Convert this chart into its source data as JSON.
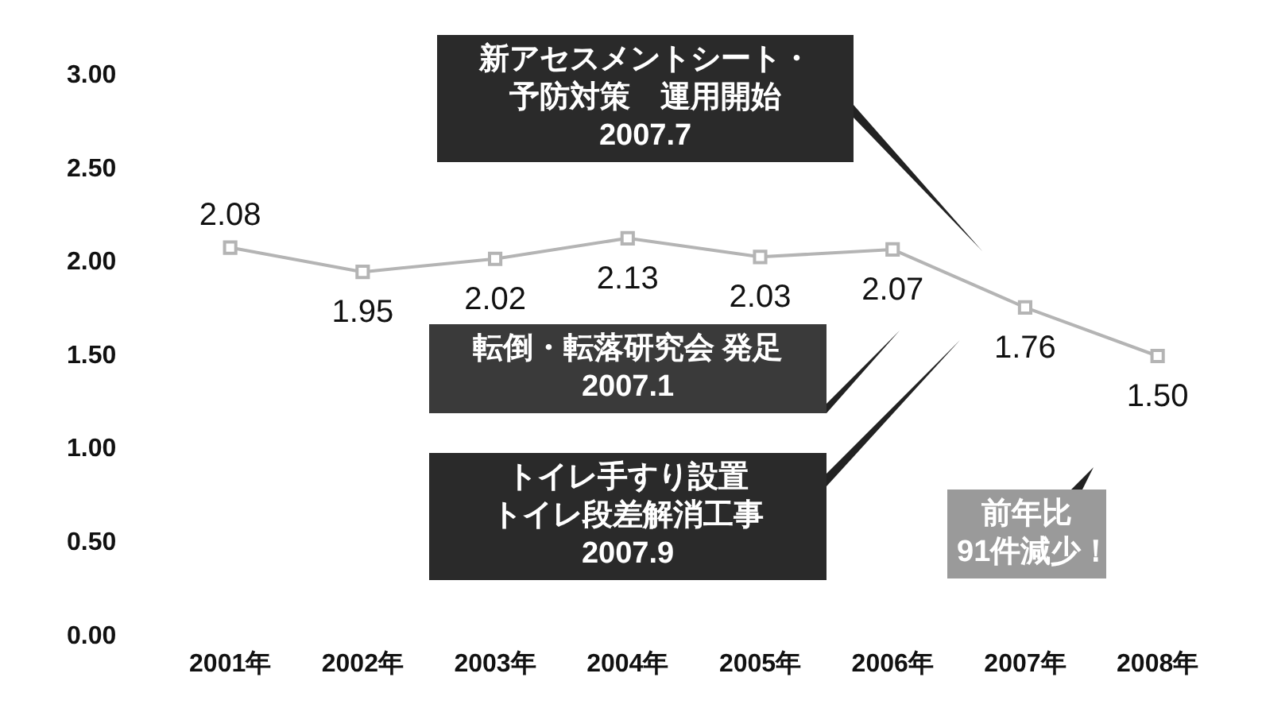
{
  "chart_data": {
    "type": "line",
    "categories": [
      "2001年",
      "2002年",
      "2003年",
      "2004年",
      "2005年",
      "2006年",
      "2007年",
      "2008年"
    ],
    "series": [
      {
        "color": "#b4b4b4",
        "values": [
          2.08,
          1.95,
          2.02,
          2.13,
          2.03,
          2.07,
          1.76,
          1.5
        ]
      }
    ],
    "ylim": [
      0,
      3
    ],
    "yticks": [
      {
        "value": 0,
        "label": "0.00"
      },
      {
        "value": 0.5,
        "label": "0.50"
      },
      {
        "value": 1,
        "label": "1.00"
      },
      {
        "value": 1.5,
        "label": "1.50"
      },
      {
        "value": 2,
        "label": "2.00"
      },
      {
        "value": 2.5,
        "label": "2.50"
      },
      {
        "value": 3,
        "label": "3.00"
      }
    ],
    "value_labels": [
      "2.08",
      "1.95",
      "2.02",
      "2.13",
      "2.03",
      "2.07",
      "1.76",
      "1.50"
    ],
    "marker": "square",
    "line_style": "solid",
    "grid": false,
    "legend": false,
    "annotations": [
      "新アセスメントシート・予防対策　運用開始\n2007.7",
      "転倒・転落研究会 発足\n2007.1",
      "トイレ手すり設置トイレ段差解消工事\n2007.9",
      "前年比91件減少！"
    ]
  }
}
